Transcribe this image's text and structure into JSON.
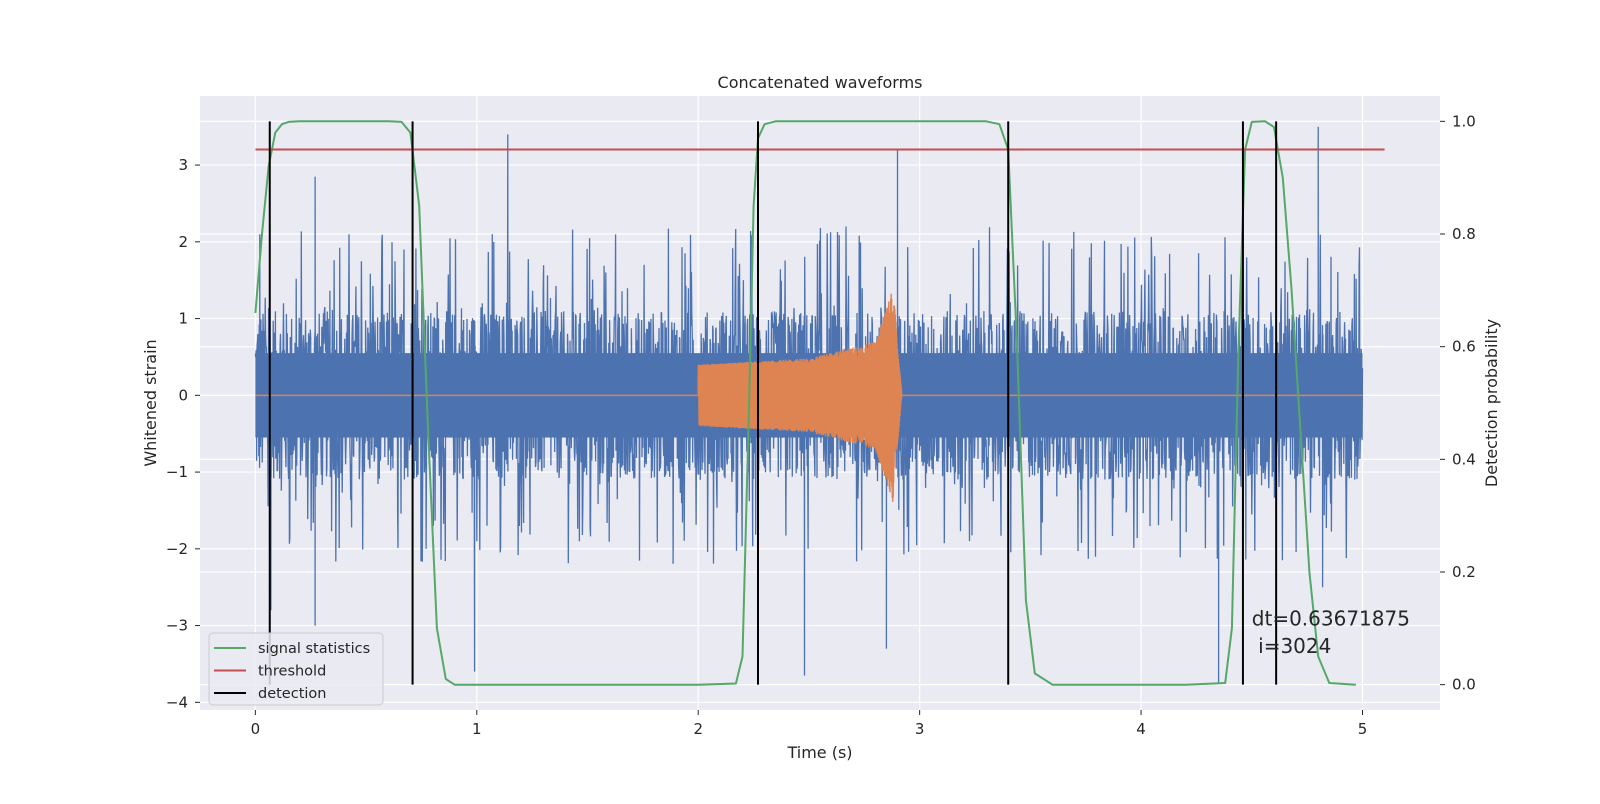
{
  "chart_data": {
    "type": "line",
    "title": "Concatenated waveforms",
    "xlabel": "Time (s)",
    "ylabel": "Whitened strain",
    "ylabel_right": "Detection probability",
    "xlim": [
      -0.25,
      5.35
    ],
    "ylim": [
      -4.1,
      3.9
    ],
    "ylim_right": [
      -0.045,
      1.045
    ],
    "xticks": [
      0,
      1,
      2,
      3,
      4,
      5
    ],
    "xtick_labels": [
      "0",
      "1",
      "2",
      "3",
      "4",
      "5"
    ],
    "yticks": [
      -4,
      -3,
      -2,
      -1,
      0,
      1,
      2,
      3
    ],
    "ytick_labels": [
      "−4",
      "−3",
      "−2",
      "−1",
      "0",
      "1",
      "2",
      "3"
    ],
    "yticks_right": [
      0.0,
      0.2,
      0.4,
      0.6,
      0.8,
      1.0
    ],
    "ytick_labels_right": [
      "0.0",
      "0.2",
      "0.4",
      "0.6",
      "0.8",
      "1.0"
    ],
    "grid": true,
    "legend_position": "lower-left",
    "series": [
      {
        "name": "",
        "kind": "noise",
        "axis": "left",
        "color": "#4c72b0",
        "x_range": [
          0,
          5
        ],
        "typical_amplitude": 1.1,
        "peak_amplitude": 3.5,
        "spikes": [
          {
            "x": 0.02,
            "y": 2.1
          },
          {
            "x": 0.07,
            "y": -2.8
          },
          {
            "x": 0.27,
            "y": -3.0
          },
          {
            "x": 0.27,
            "y": 2.85
          },
          {
            "x": 0.99,
            "y": -3.6
          },
          {
            "x": 1.07,
            "y": 2.1
          },
          {
            "x": 1.14,
            "y": 3.4
          },
          {
            "x": 2.48,
            "y": -3.65
          },
          {
            "x": 2.85,
            "y": -3.3
          },
          {
            "x": 2.9,
            "y": 3.2
          },
          {
            "x": 4.35,
            "y": -3.75
          },
          {
            "x": 4.8,
            "y": 3.5
          },
          {
            "x": 4.82,
            "y": -2.5
          }
        ]
      },
      {
        "name": "",
        "kind": "chirp",
        "axis": "left",
        "color": "#dd8452",
        "x_range": [
          0,
          5
        ],
        "chirp_start": 2.0,
        "chirp_end": 2.92,
        "envelope": [
          {
            "x": 2.0,
            "y": 0.4
          },
          {
            "x": 2.5,
            "y": 0.48
          },
          {
            "x": 2.8,
            "y": 0.7
          },
          {
            "x": 2.88,
            "y": 1.4
          },
          {
            "x": 2.92,
            "y": 0.0
          }
        ]
      },
      {
        "name": "signal statistics",
        "axis": "right",
        "color": "#55a868",
        "x": [
          0.0,
          0.03,
          0.06,
          0.09,
          0.12,
          0.15,
          0.2,
          0.4,
          0.6,
          0.66,
          0.7,
          0.74,
          0.78,
          0.82,
          0.86,
          0.9,
          2.0,
          2.17,
          2.2,
          2.23,
          2.25,
          2.27,
          2.3,
          2.35,
          2.5,
          3.3,
          3.36,
          3.4,
          3.44,
          3.48,
          3.52,
          3.6,
          4.2,
          4.38,
          4.41,
          4.44,
          4.47,
          4.5,
          4.56,
          4.6,
          4.64,
          4.68,
          4.72,
          4.76,
          4.8,
          4.85,
          4.97
        ],
        "y": [
          0.66,
          0.8,
          0.92,
          0.98,
          0.995,
          0.999,
          1.0,
          1.0,
          1.0,
          0.999,
          0.98,
          0.85,
          0.45,
          0.1,
          0.01,
          0.0,
          0.0,
          0.002,
          0.05,
          0.5,
          0.85,
          0.97,
          0.995,
          1.0,
          1.0,
          1.0,
          0.995,
          0.95,
          0.6,
          0.15,
          0.02,
          0.0,
          0.0,
          0.003,
          0.1,
          0.6,
          0.95,
          0.999,
          1.0,
          0.99,
          0.9,
          0.7,
          0.45,
          0.2,
          0.05,
          0.003,
          0.0
        ]
      },
      {
        "name": "threshold",
        "axis": "right",
        "color": "#c44e52",
        "x": [
          0.0,
          5.1
        ],
        "y": [
          0.95,
          0.95
        ]
      },
      {
        "name": "detection",
        "axis": "right",
        "color": "#000000",
        "vlines_x": [
          0.065,
          0.71,
          2.27,
          3.4,
          4.46,
          4.61
        ],
        "y_range": [
          0.0,
          1.0
        ]
      }
    ],
    "annotations": [
      {
        "text": "dt=0.63671875",
        "x": 4.5,
        "y": -3.0
      },
      {
        "text": " i=3024",
        "x": 4.5,
        "y": -3.36
      }
    ]
  }
}
